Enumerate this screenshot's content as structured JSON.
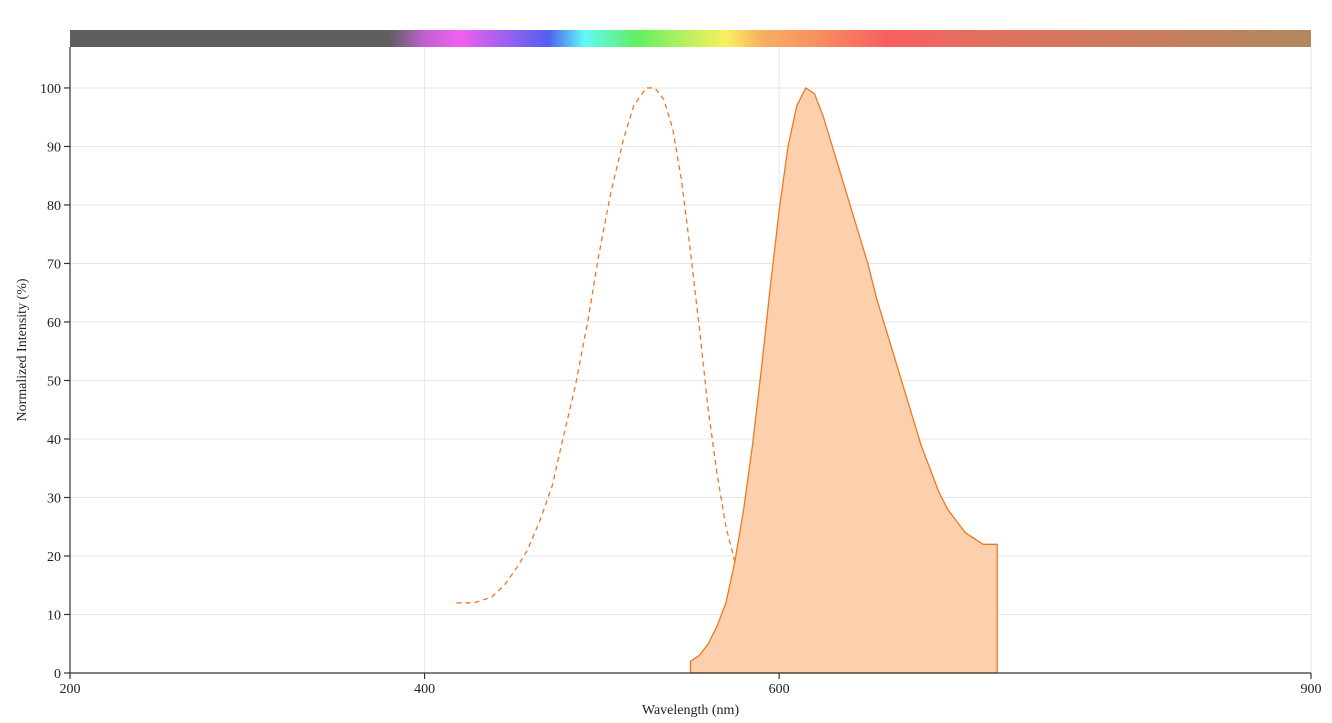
{
  "chart_data": {
    "type": "area",
    "xlabel": "Wavelength (nm)",
    "ylabel": "Normalized Intensity (%)",
    "xlim": [
      200,
      900
    ],
    "ylim": [
      0,
      107
    ],
    "x_ticks": [
      200,
      400,
      600,
      900
    ],
    "y_ticks": [
      0,
      10,
      20,
      30,
      40,
      50,
      60,
      70,
      80,
      90,
      100
    ],
    "grid": true,
    "spectrum_bar": {
      "stops": [
        {
          "nm": 200,
          "color": "#5f5f5f"
        },
        {
          "nm": 380,
          "color": "#5f5f5f"
        },
        {
          "nm": 400,
          "color": "#c060d0"
        },
        {
          "nm": 420,
          "color": "#f060f0"
        },
        {
          "nm": 445,
          "color": "#a060f0"
        },
        {
          "nm": 470,
          "color": "#5060f0"
        },
        {
          "nm": 490,
          "color": "#60f8f8"
        },
        {
          "nm": 520,
          "color": "#60f060"
        },
        {
          "nm": 545,
          "color": "#b0f060"
        },
        {
          "nm": 570,
          "color": "#f8f060"
        },
        {
          "nm": 590,
          "color": "#f8b060"
        },
        {
          "nm": 620,
          "color": "#f89060"
        },
        {
          "nm": 660,
          "color": "#f86060"
        },
        {
          "nm": 720,
          "color": "#e07060"
        },
        {
          "nm": 900,
          "color": "#b08860"
        }
      ]
    },
    "series": [
      {
        "kind": "excitation",
        "style": "dashed",
        "color": "#f07820",
        "x": [
          418,
          428,
          438,
          445,
          452,
          458,
          465,
          472,
          478,
          485,
          492,
          498,
          505,
          512,
          518,
          525,
          530,
          535,
          540,
          545,
          550,
          555,
          560,
          565,
          570,
          575,
          580,
          585,
          590,
          595,
          600,
          605,
          610,
          615,
          620,
          630,
          640,
          650,
          650
        ],
        "y": [
          12,
          12,
          13,
          15,
          18,
          21,
          26,
          32,
          40,
          49,
          60,
          71,
          82,
          91,
          97,
          100,
          100,
          98,
          93,
          84,
          72,
          59,
          45,
          34,
          25,
          19,
          15,
          12,
          10,
          9.5,
          9,
          9,
          8.5,
          8,
          8,
          8,
          8,
          8,
          0
        ]
      },
      {
        "kind": "emission",
        "style": "filled",
        "color": "#f07820",
        "fill": "#fdd0ad",
        "x": [
          550,
          550,
          555,
          560,
          565,
          570,
          575,
          580,
          585,
          590,
          595,
          600,
          605,
          610,
          615,
          620,
          625,
          630,
          635,
          640,
          645,
          650,
          655,
          660,
          665,
          670,
          675,
          680,
          685,
          690,
          695,
          700,
          705,
          710,
          715,
          718,
          723,
          723
        ],
        "y": [
          0,
          2,
          3,
          5,
          8,
          12,
          19,
          28,
          39,
          52,
          66,
          79,
          90,
          97,
          100,
          99,
          95,
          90,
          85,
          80,
          75,
          70,
          64,
          59,
          54,
          49,
          44,
          39,
          35,
          31,
          28,
          26,
          24,
          23,
          22,
          22,
          22,
          0
        ]
      }
    ]
  }
}
